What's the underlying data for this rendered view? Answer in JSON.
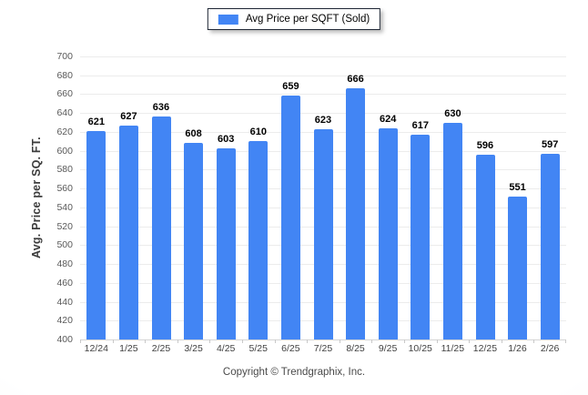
{
  "legend": {
    "label": "Avg Price per SQFT (Sold)",
    "swatch_color": "#4285f4"
  },
  "footer": {
    "copyright": "Copyright © Trendgraphix, Inc."
  },
  "chart_data": {
    "type": "bar",
    "title": "",
    "xlabel": "",
    "ylabel": "Avg. Price per SQ. FT.",
    "legend_entries": [
      "Avg Price per SQFT (Sold)"
    ],
    "legend_position": "top",
    "categories": [
      "12/24",
      "1/25",
      "2/25",
      "3/25",
      "4/25",
      "5/25",
      "6/25",
      "7/25",
      "8/25",
      "9/25",
      "10/25",
      "11/25",
      "12/25",
      "1/26",
      "2/26"
    ],
    "values": [
      621,
      627,
      636,
      608,
      603,
      610,
      659,
      623,
      666,
      624,
      617,
      630,
      596,
      551,
      597
    ],
    "ylim": [
      400,
      700
    ],
    "ytick_step": 20,
    "grid": true,
    "bar_color": "#4285f4"
  },
  "colors": {
    "bar": "#4285f4",
    "gridline": "#ececec",
    "axis_line": "#d4d4d4",
    "tick_label": "#595959",
    "value_label": "#000000"
  }
}
